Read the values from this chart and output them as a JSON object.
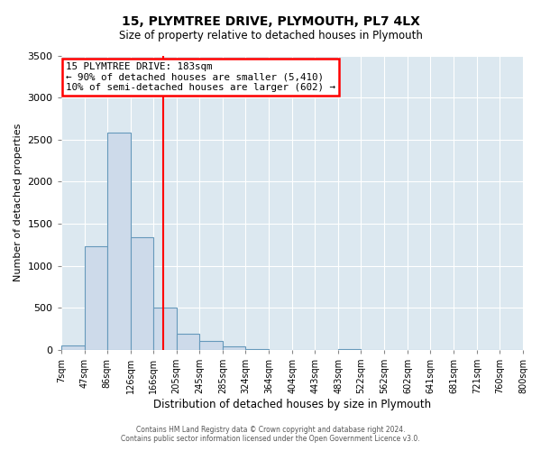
{
  "title": "15, PLYMTREE DRIVE, PLYMOUTH, PL7 4LX",
  "subtitle": "Size of property relative to detached houses in Plymouth",
  "xlabel": "Distribution of detached houses by size in Plymouth",
  "ylabel": "Number of detached properties",
  "bin_labels": [
    "7sqm",
    "47sqm",
    "86sqm",
    "126sqm",
    "166sqm",
    "205sqm",
    "245sqm",
    "285sqm",
    "324sqm",
    "364sqm",
    "404sqm",
    "443sqm",
    "483sqm",
    "522sqm",
    "562sqm",
    "602sqm",
    "641sqm",
    "681sqm",
    "721sqm",
    "760sqm",
    "800sqm"
  ],
  "bar_values": [
    50,
    1230,
    2580,
    1340,
    500,
    195,
    110,
    40,
    10,
    0,
    0,
    0,
    5,
    0,
    0,
    0,
    0,
    0,
    0,
    0
  ],
  "bar_color": "#cddaea",
  "bar_edge_color": "#6699bb",
  "ylim": [
    0,
    3500
  ],
  "yticks": [
    0,
    500,
    1000,
    1500,
    2000,
    2500,
    3000,
    3500
  ],
  "vline_x": 183,
  "vline_color": "red",
  "annotation_title": "15 PLYMTREE DRIVE: 183sqm",
  "annotation_line1": "← 90% of detached houses are smaller (5,410)",
  "annotation_line2": "10% of semi-detached houses are larger (602) →",
  "annotation_box_color": "red",
  "footer_line1": "Contains HM Land Registry data © Crown copyright and database right 2024.",
  "footer_line2": "Contains public sector information licensed under the Open Government Licence v3.0.",
  "background_color": "#ffffff",
  "plot_background_color": "#dce8f0",
  "grid_color": "#ffffff",
  "bin_edges": [
    7,
    47,
    86,
    126,
    166,
    205,
    245,
    285,
    324,
    364,
    404,
    443,
    483,
    522,
    562,
    602,
    641,
    681,
    721,
    760,
    800
  ]
}
